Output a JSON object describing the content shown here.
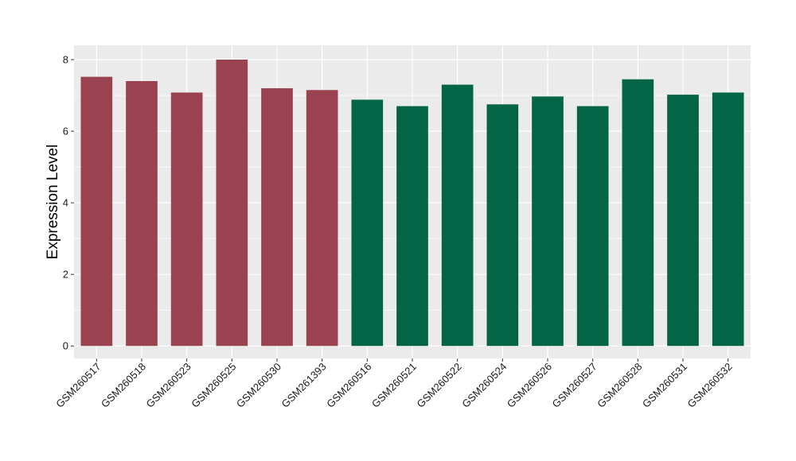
{
  "chart_data": {
    "type": "bar",
    "ylabel": "Expression Level",
    "xlabel": "",
    "ylim": [
      -0.35,
      8.4
    ],
    "yticks": [
      0,
      2,
      4,
      6,
      8
    ],
    "grid": true,
    "colors": {
      "group_a": "#9a4250",
      "group_b": "#036446",
      "panel": "#ebebeb",
      "gridline": "#ffffff"
    },
    "categories": [
      "GSM260517",
      "GSM260518",
      "GSM260523",
      "GSM260525",
      "GSM260530",
      "GSM261393",
      "GSM260516",
      "GSM260521",
      "GSM260522",
      "GSM260524",
      "GSM260526",
      "GSM260527",
      "GSM260528",
      "GSM260531",
      "GSM260532"
    ],
    "values": [
      7.52,
      7.4,
      7.08,
      8.0,
      7.2,
      7.15,
      6.88,
      6.7,
      7.3,
      6.75,
      6.97,
      6.7,
      7.45,
      7.02,
      7.08
    ],
    "groups": [
      "a",
      "a",
      "a",
      "a",
      "a",
      "a",
      "b",
      "b",
      "b",
      "b",
      "b",
      "b",
      "b",
      "b",
      "b"
    ]
  }
}
